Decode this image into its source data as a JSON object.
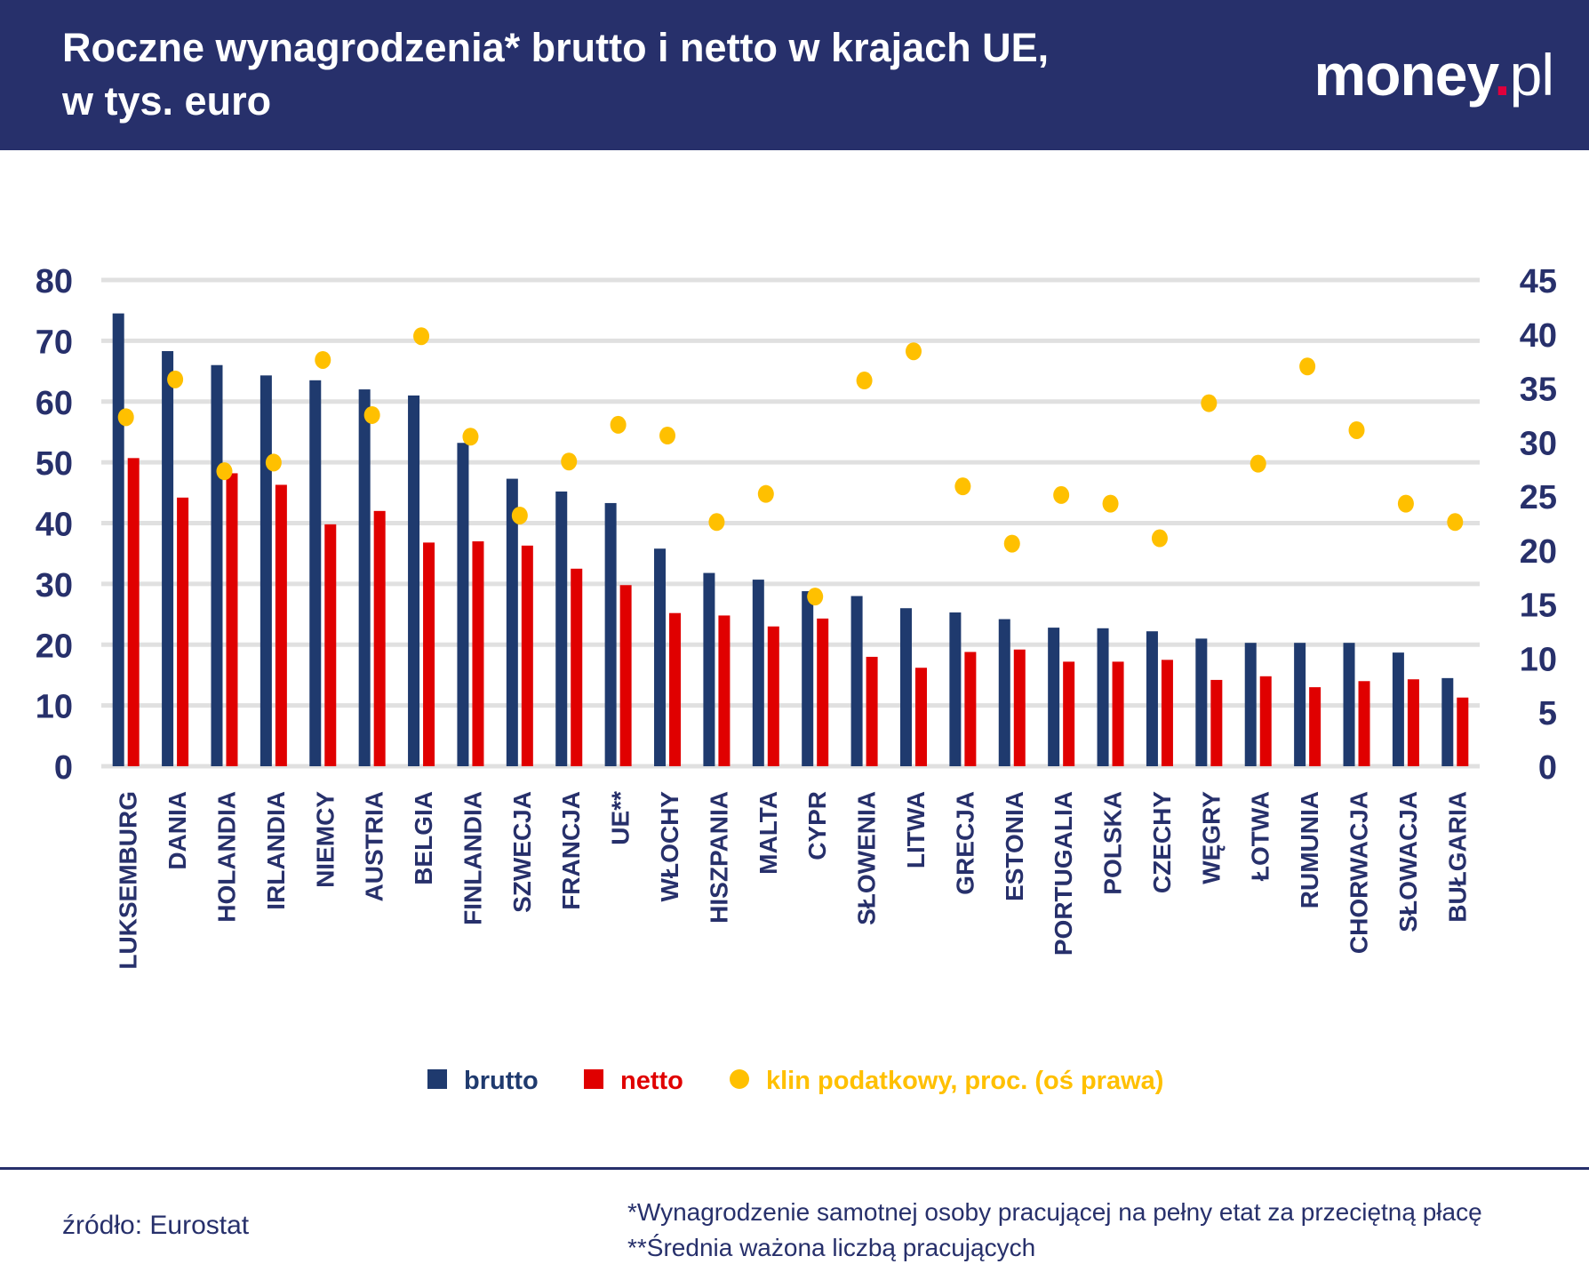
{
  "header": {
    "title_line1": "Roczne wynagrodzenia* brutto i netto w krajach UE,",
    "title_line2": "w tys. euro",
    "logo": "money.pl"
  },
  "chart_data": {
    "type": "bar",
    "title": "Roczne wynagrodzenia* brutto i netto w krajach UE, w tys. euro",
    "categories": [
      "LUKSEMBURG",
      "DANIA",
      "HOLANDIA",
      "IRLANDIA",
      "NIEMCY",
      "AUSTRIA",
      "BELGIA",
      "FINLANDIA",
      "SZWECJA",
      "FRANCJA",
      "UE**",
      "WŁOCHY",
      "HISZPANIA",
      "MALTA",
      "CYPR",
      "SŁOWENIA",
      "LITWA",
      "GRECJA",
      "ESTONIA",
      "PORTUGALIA",
      "POLSKA",
      "CZECHY",
      "WĘGRY",
      "ŁOTWA",
      "RUMUNIA",
      "CHORWACJA",
      "SŁOWACJA",
      "BUŁGARIA"
    ],
    "series": [
      {
        "name": "brutto",
        "type": "bar",
        "axis": "left",
        "color": "#1f3a6e",
        "values": [
          74.5,
          68.3,
          66.0,
          64.3,
          63.5,
          62.0,
          61.0,
          53.2,
          47.3,
          45.2,
          43.3,
          35.8,
          31.8,
          30.7,
          28.8,
          28.0,
          26.0,
          25.3,
          24.2,
          22.8,
          22.7,
          22.2,
          21.0,
          20.3,
          20.3,
          20.3,
          18.7,
          14.5
        ]
      },
      {
        "name": "netto",
        "type": "bar",
        "axis": "left",
        "color": "#e00000",
        "values": [
          50.7,
          44.2,
          48.2,
          46.3,
          39.8,
          42.0,
          36.8,
          37.0,
          36.3,
          32.5,
          29.8,
          25.2,
          24.8,
          23.0,
          24.3,
          18.0,
          16.2,
          18.8,
          19.2,
          17.2,
          17.2,
          17.5,
          14.2,
          14.8,
          13.0,
          14.0,
          14.3,
          11.3
        ]
      },
      {
        "name": "klin podatkowy, proc. (oś prawa)",
        "type": "scatter",
        "axis": "right",
        "color": "#ffc000",
        "values": [
          32.3,
          35.8,
          27.3,
          28.1,
          37.6,
          32.5,
          39.8,
          30.5,
          23.2,
          28.2,
          31.6,
          30.6,
          22.6,
          25.2,
          15.7,
          35.7,
          38.4,
          25.9,
          20.6,
          25.1,
          24.3,
          21.1,
          33.6,
          28.0,
          37.0,
          31.1,
          24.3,
          22.6
        ]
      }
    ],
    "ylim": [
      0,
      80
    ],
    "yticks": [
      "0",
      "10",
      "20",
      "30",
      "40",
      "50",
      "60",
      "70",
      "80"
    ],
    "y2lim": [
      0,
      45
    ],
    "y2ticks": [
      "0",
      "5",
      "10",
      "15",
      "20",
      "25",
      "30",
      "35",
      "40",
      "45"
    ],
    "grid": true,
    "legend": "bottom",
    "axis_color": "#27306b",
    "grid_color": "#e0e0e0"
  },
  "footer": {
    "source": "źródło: Eurostat",
    "note1": "*Wynagrodzenie samotnej osoby pracującej na pełny etat za przeciętną płacę",
    "note2": "**Średnia ważona liczbą pracujących"
  }
}
